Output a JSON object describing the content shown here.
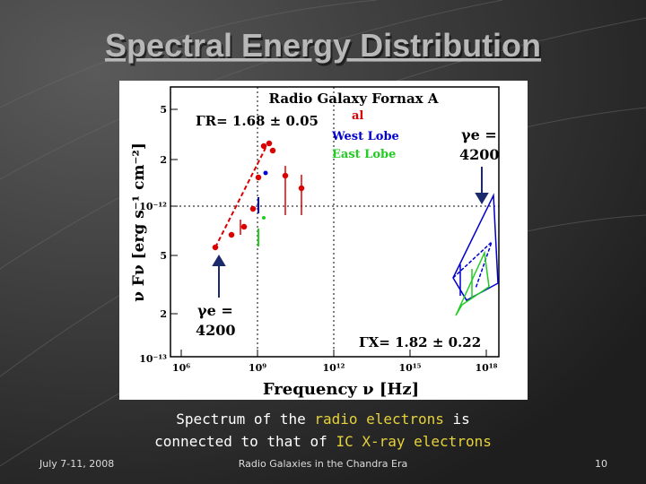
{
  "title": "Spectral Energy Distribution",
  "plot": {
    "title": "Radio Galaxy Fornax A",
    "gamma_r": "ΓR= 1.68 ± 0.05",
    "legend": [
      "al",
      "West Lobe",
      "East Lobe"
    ],
    "gamma_e_top": [
      "γe =",
      "4200"
    ],
    "gamma_e_bottom": [
      "γe =",
      "4200"
    ],
    "gamma_x": "ΓX= 1.82 ± 0.22",
    "y_label": "ν Fν [erg s⁻¹ cm⁻²]",
    "x_label": "Frequency ν [Hz]",
    "x_ticks": [
      "10⁶",
      "10⁹",
      "10¹²",
      "10¹⁵",
      "10¹⁸"
    ],
    "y_ticks": [
      "5",
      "2",
      "10⁻¹²",
      "5",
      "2",
      "10⁻¹³"
    ]
  },
  "caption": {
    "line1": [
      "Spectrum of the ",
      "radio electrons",
      " is"
    ],
    "line2": [
      "connected to that of ",
      "IC X-ray electrons"
    ]
  },
  "footer": {
    "date": "July 7-11, 2008",
    "event": "Radio Galaxies in the Chandra Era",
    "page": "10"
  }
}
